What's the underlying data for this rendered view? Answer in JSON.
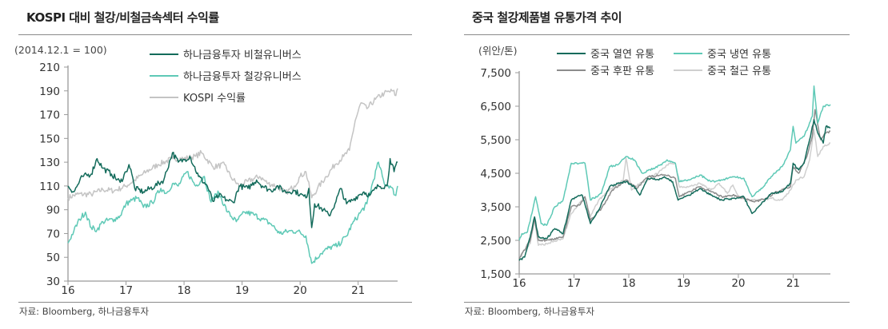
{
  "chart_data": [
    {
      "type": "line",
      "title": "KOSPI 대비 철강/비철금속섹터 수익률",
      "unit_label": "(2014.12.1 = 100)",
      "source": "자료: Bloomberg, 하나금융투자",
      "xlim": [
        16,
        21.68
      ],
      "ylim": [
        30,
        210
      ],
      "x_ticks": [
        16,
        17,
        18,
        19,
        20,
        21
      ],
      "x_tick_labels": [
        "16",
        "17",
        "18",
        "19",
        "20",
        "21"
      ],
      "y_ticks": [
        30,
        50,
        70,
        90,
        110,
        130,
        150,
        170,
        190,
        210
      ],
      "y_tick_labels": [
        "30",
        "50",
        "70",
        "90",
        "110",
        "130",
        "150",
        "170",
        "190",
        "210"
      ],
      "grid": false,
      "legend_position": "top-center",
      "series": [
        {
          "name": "하나금융투자 비철유니버스",
          "color": "#136b5b",
          "x": [
            16.0,
            16.1,
            16.25,
            16.4,
            16.5,
            16.6,
            16.75,
            16.9,
            17.0,
            17.05,
            17.1,
            17.15,
            17.3,
            17.5,
            17.65,
            17.8,
            17.9,
            18.0,
            18.1,
            18.25,
            18.4,
            18.5,
            18.6,
            18.75,
            18.85,
            18.95,
            19.1,
            19.25,
            19.35,
            19.5,
            19.6,
            19.75,
            19.9,
            20.0,
            20.1,
            20.15,
            20.2,
            20.25,
            20.4,
            20.5,
            20.6,
            20.7,
            20.8,
            20.9,
            21.0,
            21.1,
            21.2,
            21.35,
            21.5,
            21.55,
            21.62,
            21.68
          ],
          "y": [
            110,
            105,
            118,
            120,
            133,
            125,
            120,
            113,
            122,
            128,
            120,
            108,
            105,
            110,
            115,
            138,
            130,
            132,
            135,
            118,
            110,
            97,
            102,
            98,
            96,
            110,
            108,
            115,
            110,
            106,
            110,
            105,
            106,
            103,
            100,
            108,
            75,
            95,
            90,
            85,
            95,
            108,
            95,
            98,
            102,
            105,
            102,
            110,
            110,
            133,
            122,
            130
          ]
        },
        {
          "name": "하나금융투자 철강유니버스",
          "color": "#5ec9b6",
          "x": [
            16.0,
            16.1,
            16.2,
            16.3,
            16.4,
            16.5,
            16.6,
            16.8,
            16.9,
            17.0,
            17.1,
            17.2,
            17.3,
            17.45,
            17.6,
            17.7,
            17.8,
            17.9,
            18.05,
            18.2,
            18.35,
            18.45,
            18.6,
            18.75,
            18.9,
            19.05,
            19.2,
            19.35,
            19.5,
            19.65,
            19.8,
            19.95,
            20.1,
            20.2,
            20.35,
            20.5,
            20.65,
            20.8,
            20.9,
            21.0,
            21.15,
            21.35,
            21.45,
            21.55,
            21.65,
            21.68
          ],
          "y": [
            62,
            72,
            82,
            88,
            75,
            73,
            80,
            82,
            85,
            95,
            98,
            100,
            92,
            96,
            108,
            104,
            112,
            110,
            122,
            110,
            118,
            98,
            104,
            88,
            80,
            88,
            86,
            82,
            78,
            70,
            72,
            72,
            68,
            45,
            53,
            58,
            60,
            68,
            78,
            85,
            95,
            130,
            112,
            110,
            102,
            110
          ]
        },
        {
          "name": "KOSPI 수익률",
          "color": "#c4c4c4",
          "x": [
            16.0,
            16.15,
            16.4,
            16.6,
            16.8,
            17.0,
            17.15,
            17.35,
            17.55,
            17.8,
            18.0,
            18.2,
            18.3,
            18.5,
            18.7,
            18.8,
            18.95,
            19.1,
            19.3,
            19.45,
            19.6,
            19.75,
            19.9,
            20.0,
            20.1,
            20.2,
            20.3,
            20.45,
            20.6,
            20.75,
            20.85,
            20.95,
            21.05,
            21.15,
            21.3,
            21.45,
            21.6,
            21.65,
            21.68
          ],
          "y": [
            100,
            103,
            103,
            107,
            106,
            110,
            115,
            122,
            128,
            133,
            133,
            135,
            138,
            126,
            128,
            118,
            110,
            114,
            118,
            112,
            110,
            104,
            110,
            118,
            122,
            100,
            108,
            118,
            128,
            135,
            140,
            165,
            180,
            175,
            183,
            188,
            190,
            186,
            192
          ]
        }
      ]
    },
    {
      "type": "line",
      "title": "중국 철강제품별 유통가격 추이",
      "unit_label": "(위안/톤)",
      "source": "자료: Bloomberg, 하나금융투자",
      "xlim": [
        16,
        21.68
      ],
      "ylim": [
        1500,
        7500
      ],
      "x_ticks": [
        16,
        17,
        18,
        19,
        20,
        21
      ],
      "x_tick_labels": [
        "16",
        "17",
        "18",
        "19",
        "20",
        "21"
      ],
      "y_ticks": [
        1500,
        2500,
        3500,
        4500,
        5500,
        6500,
        7500
      ],
      "y_tick_labels": [
        "1,500",
        "2,500",
        "3,500",
        "4,500",
        "5,500",
        "6,500",
        "7,500"
      ],
      "grid": false,
      "legend_position": "top",
      "series": [
        {
          "name": "중국 열연 유통",
          "color": "#136b5b",
          "x": [
            16.0,
            16.1,
            16.2,
            16.28,
            16.35,
            16.5,
            16.65,
            16.8,
            16.95,
            17.05,
            17.15,
            17.3,
            17.45,
            17.65,
            17.8,
            17.95,
            18.1,
            18.2,
            18.35,
            18.55,
            18.65,
            18.8,
            18.9,
            19.1,
            19.3,
            19.5,
            19.7,
            19.9,
            20.1,
            20.25,
            20.4,
            20.6,
            20.8,
            20.95,
            21.0,
            21.1,
            21.2,
            21.3,
            21.38,
            21.45,
            21.55,
            21.6,
            21.68
          ],
          "y": [
            1900,
            2000,
            2600,
            3200,
            2600,
            2550,
            2850,
            2700,
            3700,
            3800,
            3850,
            3000,
            3400,
            4100,
            4200,
            4250,
            4100,
            3850,
            4350,
            4300,
            4400,
            4250,
            3700,
            3850,
            4050,
            3850,
            3700,
            3750,
            3800,
            3300,
            3550,
            3900,
            3950,
            4200,
            4800,
            4600,
            4800,
            5500,
            6100,
            5700,
            5400,
            5900,
            5850
          ]
        },
        {
          "name": "중국 냉연 유통",
          "color": "#5ec9b6",
          "x": [
            16.0,
            16.05,
            16.15,
            16.3,
            16.4,
            16.5,
            16.65,
            16.8,
            16.95,
            17.1,
            17.2,
            17.3,
            17.5,
            17.65,
            17.8,
            17.95,
            18.1,
            18.25,
            18.45,
            18.6,
            18.7,
            18.85,
            18.92,
            19.1,
            19.3,
            19.5,
            19.7,
            19.9,
            20.1,
            20.25,
            20.4,
            20.6,
            20.8,
            20.95,
            21.0,
            21.05,
            21.2,
            21.35,
            21.38,
            21.45,
            21.55,
            21.68
          ],
          "y": [
            2500,
            2700,
            2750,
            3800,
            3000,
            2950,
            3500,
            3700,
            4800,
            4800,
            4800,
            3700,
            3900,
            4700,
            4750,
            5000,
            4900,
            4500,
            4650,
            4750,
            4900,
            4800,
            4250,
            4300,
            4450,
            4250,
            4300,
            4400,
            4350,
            3800,
            4000,
            4400,
            4700,
            5200,
            5900,
            5400,
            5600,
            6200,
            7100,
            6000,
            6500,
            6550
          ]
        },
        {
          "name": "중국 후판 유통",
          "color": "#8c8c8c",
          "x": [
            16.0,
            16.2,
            16.28,
            16.35,
            16.5,
            16.8,
            16.95,
            17.1,
            17.2,
            17.3,
            17.5,
            17.7,
            17.95,
            18.15,
            18.35,
            18.65,
            18.85,
            18.92,
            19.1,
            19.3,
            19.5,
            19.7,
            19.9,
            20.1,
            20.3,
            20.5,
            20.7,
            20.95,
            21.0,
            21.1,
            21.25,
            21.35,
            21.4,
            21.5,
            21.6,
            21.68
          ],
          "y": [
            1950,
            2500,
            3150,
            2500,
            2500,
            2600,
            3500,
            3550,
            3800,
            3100,
            3450,
            4000,
            4300,
            4050,
            4400,
            4450,
            4350,
            3800,
            3950,
            4100,
            3950,
            3800,
            3850,
            3750,
            3650,
            3750,
            3950,
            4100,
            4700,
            4500,
            5000,
            5600,
            6400,
            5500,
            5700,
            5750
          ]
        },
        {
          "name": "중국 철근 유통",
          "color": "#cfcfcf",
          "x": [
            16.0,
            16.2,
            16.28,
            16.35,
            16.5,
            16.8,
            16.95,
            17.05,
            17.2,
            17.3,
            17.45,
            17.65,
            17.9,
            17.95,
            18.05,
            18.2,
            18.35,
            18.6,
            18.75,
            18.85,
            18.92,
            19.1,
            19.3,
            19.5,
            19.65,
            19.8,
            19.9,
            20.0,
            20.2,
            20.4,
            20.6,
            20.8,
            20.95,
            21.05,
            21.2,
            21.3,
            21.38,
            21.45,
            21.55,
            21.68
          ],
          "y": [
            2000,
            2400,
            3100,
            2350,
            2400,
            2550,
            3300,
            3500,
            3800,
            3200,
            3700,
            4000,
            4300,
            4950,
            4000,
            4200,
            4300,
            4600,
            4800,
            4800,
            4100,
            4100,
            4200,
            4000,
            4200,
            3900,
            4150,
            3800,
            3700,
            3700,
            3750,
            3700,
            4000,
            4300,
            4400,
            4900,
            5800,
            5000,
            5300,
            5400
          ]
        }
      ]
    }
  ]
}
